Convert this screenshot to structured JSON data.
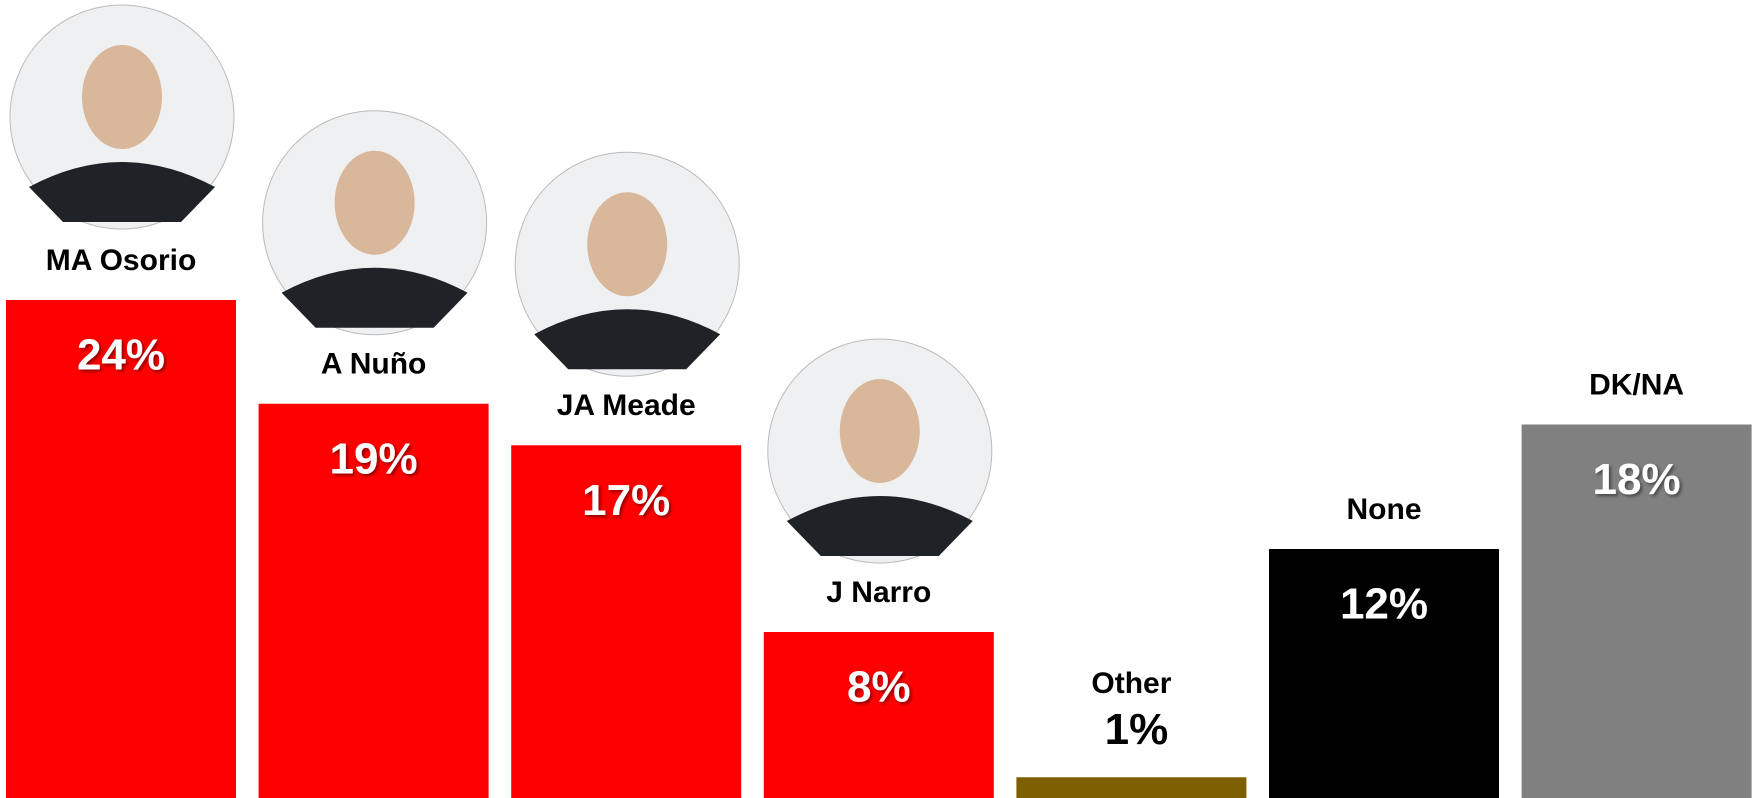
{
  "chart_data": {
    "type": "bar",
    "categories": [
      "MA Osorio",
      "A Nuño",
      "JA Meade",
      "J Narro",
      "Other",
      "None",
      "DK/NA"
    ],
    "values": [
      24,
      19,
      17,
      8,
      1,
      12,
      18
    ],
    "value_labels": [
      "24%",
      "19%",
      "17%",
      "8%",
      "1%",
      "12%",
      "18%"
    ],
    "colors": [
      "#ff0000",
      "#ff0000",
      "#ff0000",
      "#ff0000",
      "#7f6000",
      "#000000",
      "#808080"
    ]
  }
}
